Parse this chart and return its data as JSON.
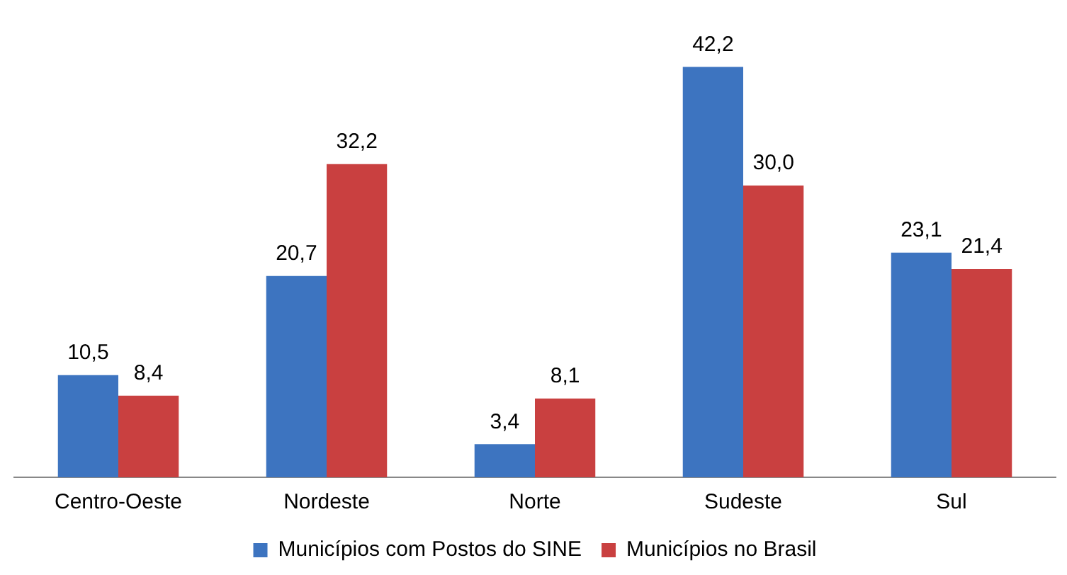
{
  "chart_data": {
    "type": "bar",
    "categories": [
      "Centro-Oeste",
      "Nordeste",
      "Norte",
      "Sudeste",
      "Sul"
    ],
    "series": [
      {
        "name": "Municípios com Postos do SINE",
        "color": "#3d74c0",
        "values": [
          10.5,
          20.7,
          3.4,
          42.2,
          23.1
        ],
        "value_labels": [
          "10,5",
          "20,7",
          "3,4",
          "42,2",
          "23,1"
        ]
      },
      {
        "name": "Municípios no Brasil",
        "color": "#c94040",
        "values": [
          8.4,
          32.2,
          8.1,
          30.0,
          21.4
        ],
        "value_labels": [
          "8,4",
          "32,2",
          "8,1",
          "30,0",
          "21,4"
        ]
      }
    ],
    "grid": false,
    "legend": "bottom"
  }
}
